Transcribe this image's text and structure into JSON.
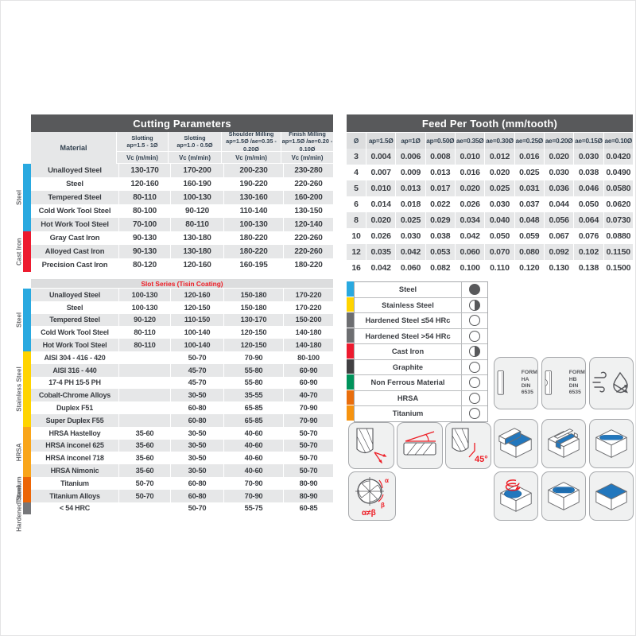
{
  "cutting_parameters": {
    "title": "Cutting Parameters",
    "material_header": "Material",
    "vc_label": "Vc (m/min)",
    "columns": [
      {
        "label": "Slotting",
        "range": "ap=1.5 - 1Ø"
      },
      {
        "label": "Slotting",
        "range": "ap=1.0 - 0.5Ø"
      },
      {
        "label": "Shoulder Milling",
        "range": "ap=1.5Ø /ae=0.35 - 0.20Ø"
      },
      {
        "label": "Finish Milling",
        "range": "ap=1.5Ø /ae=0.20 - 0.10Ø"
      }
    ],
    "groups": [
      {
        "label": "Steel",
        "span": 5,
        "color": "#29a9e0"
      },
      {
        "label": "Cast Iron",
        "span": 3,
        "color": "#ed1b2f"
      }
    ],
    "rows": [
      {
        "material": "Unalloyed Steel",
        "values": [
          "130-170",
          "170-200",
          "200-230",
          "230-280"
        ]
      },
      {
        "material": "Steel",
        "values": [
          "120-160",
          "160-190",
          "190-220",
          "220-260"
        ]
      },
      {
        "material": "Tempered Steel",
        "values": [
          "80-110",
          "100-130",
          "130-160",
          "160-200"
        ]
      },
      {
        "material": "Cold Work Tool Steel",
        "values": [
          "80-100",
          "90-120",
          "110-140",
          "130-150"
        ]
      },
      {
        "material": "Hot Work Tool Steel",
        "values": [
          "70-100",
          "80-110",
          "100-130",
          "120-140"
        ]
      },
      {
        "material": "Gray Cast Iron",
        "values": [
          "90-130",
          "130-180",
          "180-220",
          "220-260"
        ]
      },
      {
        "material": "Alloyed Cast Iron",
        "values": [
          "90-130",
          "130-180",
          "180-220",
          "220-260"
        ]
      },
      {
        "material": "Precision Cast Iron",
        "values": [
          "80-120",
          "120-160",
          "160-195",
          "180-220"
        ]
      }
    ]
  },
  "slot_series": {
    "title": "Slot Series (Tisin Coating)",
    "groups": [
      {
        "label": "Steel",
        "span": 5,
        "color": "#29a9e0"
      },
      {
        "label": "Stainless Steel",
        "span": 6,
        "color": "#ffd400"
      },
      {
        "label": "HRSA",
        "span": 4,
        "color": "#f9a51a"
      },
      {
        "label": "Titanium",
        "span": 2,
        "color": "#ec6607"
      },
      {
        "label": "Hardened Steel",
        "span": 1,
        "color": "#76777a"
      }
    ],
    "rows": [
      {
        "material": "Unalloyed Steel",
        "values": [
          "100-130",
          "120-160",
          "150-180",
          "170-220"
        ]
      },
      {
        "material": "Steel",
        "values": [
          "100-130",
          "120-150",
          "150-180",
          "170-220"
        ]
      },
      {
        "material": "Tempered Steel",
        "values": [
          "90-120",
          "110-150",
          "130-170",
          "150-200"
        ]
      },
      {
        "material": "Cold Work Tool Steel",
        "values": [
          "80-110",
          "100-140",
          "120-150",
          "140-180"
        ]
      },
      {
        "material": "Hot Work Tool Steel",
        "values": [
          "80-110",
          "100-140",
          "120-150",
          "140-180"
        ]
      },
      {
        "material": "AISI 304 - 416 - 420",
        "values": [
          "",
          "50-70",
          "70-90",
          "80-100"
        ]
      },
      {
        "material": "AISI 316 - 440",
        "values": [
          "",
          "45-70",
          "55-80",
          "60-90"
        ]
      },
      {
        "material": "17-4 PH 15-5 PH",
        "values": [
          "",
          "45-70",
          "55-80",
          "60-90"
        ]
      },
      {
        "material": "Cobalt-Chrome Alloys",
        "values": [
          "",
          "30-50",
          "35-55",
          "40-70"
        ]
      },
      {
        "material": "Duplex F51",
        "values": [
          "",
          "60-80",
          "65-85",
          "70-90"
        ]
      },
      {
        "material": "Super Duplex F55",
        "values": [
          "",
          "60-80",
          "65-85",
          "70-90"
        ]
      },
      {
        "material": "HRSA Hastelloy",
        "values": [
          "35-60",
          "30-50",
          "40-60",
          "50-70"
        ]
      },
      {
        "material": "HRSA inconel 625",
        "values": [
          "35-60",
          "30-50",
          "40-60",
          "50-70"
        ]
      },
      {
        "material": "HRSA inconel 718",
        "values": [
          "35-60",
          "30-50",
          "40-60",
          "50-70"
        ]
      },
      {
        "material": "HRSA Nimonic",
        "values": [
          "35-60",
          "30-50",
          "40-60",
          "50-70"
        ]
      },
      {
        "material": "Titanium",
        "values": [
          "50-70",
          "60-80",
          "70-90",
          "80-90"
        ]
      },
      {
        "material": "Titanium Alloys",
        "values": [
          "50-70",
          "60-80",
          "70-90",
          "80-90"
        ]
      },
      {
        "material": "< 54 HRC",
        "values": [
          "",
          "50-70",
          "55-75",
          "60-85"
        ]
      }
    ]
  },
  "feed_per_tooth": {
    "title": "Feed Per Tooth (mm/tooth)",
    "columns": [
      "Ø",
      "ap=1.5Ø",
      "ap=1Ø",
      "ap=0.50Ø",
      "ae=0.35Ø",
      "ae=0.30Ø",
      "ae=0.25Ø",
      "ae=0.20Ø",
      "ae=0.15Ø",
      "ae=0.10Ø"
    ],
    "rows": [
      {
        "d": "3",
        "values": [
          "0.004",
          "0.006",
          "0.008",
          "0.010",
          "0.012",
          "0.016",
          "0.020",
          "0.030",
          "0.0420"
        ]
      },
      {
        "d": "4",
        "values": [
          "0.007",
          "0.009",
          "0.013",
          "0.016",
          "0.020",
          "0.025",
          "0.030",
          "0.038",
          "0.0490"
        ]
      },
      {
        "d": "5",
        "values": [
          "0.010",
          "0.013",
          "0.017",
          "0.020",
          "0.025",
          "0.031",
          "0.036",
          "0.046",
          "0.0580"
        ]
      },
      {
        "d": "6",
        "values": [
          "0.014",
          "0.018",
          "0.022",
          "0.026",
          "0.030",
          "0.037",
          "0.044",
          "0.050",
          "0.0620"
        ]
      },
      {
        "d": "8",
        "values": [
          "0.020",
          "0.025",
          "0.029",
          "0.034",
          "0.040",
          "0.048",
          "0.056",
          "0.064",
          "0.0730"
        ]
      },
      {
        "d": "10",
        "values": [
          "0.026",
          "0.030",
          "0.038",
          "0.042",
          "0.050",
          "0.059",
          "0.067",
          "0.076",
          "0.0880"
        ]
      },
      {
        "d": "12",
        "values": [
          "0.035",
          "0.042",
          "0.053",
          "0.060",
          "0.070",
          "0.080",
          "0.092",
          "0.102",
          "0.1150"
        ]
      },
      {
        "d": "16",
        "values": [
          "0.042",
          "0.060",
          "0.082",
          "0.100",
          "0.110",
          "0.120",
          "0.130",
          "0.138",
          "0.1500"
        ]
      }
    ]
  },
  "material_legend": {
    "items": [
      {
        "label": "Steel",
        "color": "#29a9e0",
        "marker": "filled"
      },
      {
        "label": "Stainless Steel",
        "color": "#ffd400",
        "marker": "half"
      },
      {
        "label": "Hardened Steel ≤54 HRc",
        "color": "#6d6e71",
        "marker": "empty"
      },
      {
        "label": "Hardened Steel >54 HRc",
        "color": "#6d6e71",
        "marker": "empty"
      },
      {
        "label": "Cast Iron",
        "color": "#ed1b2f",
        "marker": "half"
      },
      {
        "label": "Graphite",
        "color": "#414042",
        "marker": "empty"
      },
      {
        "label": "Non Ferrous Material",
        "color": "#00935b",
        "marker": "empty"
      },
      {
        "label": "HRSA",
        "color": "#e96e0d",
        "marker": "empty"
      },
      {
        "label": "Titanium",
        "color": "#f6930f",
        "marker": "empty"
      }
    ]
  },
  "icons": {
    "form_ha_label": "FORM HA DIN 6535",
    "form_hb_label": "FORM HB DIN 6535",
    "chamfer_angle": "45°",
    "alpha": "α",
    "beta": "β",
    "flute_note": "α≠β"
  },
  "colors": {
    "header_bar": "#58595b",
    "row_stripe": "#e6e7e8",
    "accent_red": "#ed1c24",
    "machined_blue": "#2277bd"
  }
}
